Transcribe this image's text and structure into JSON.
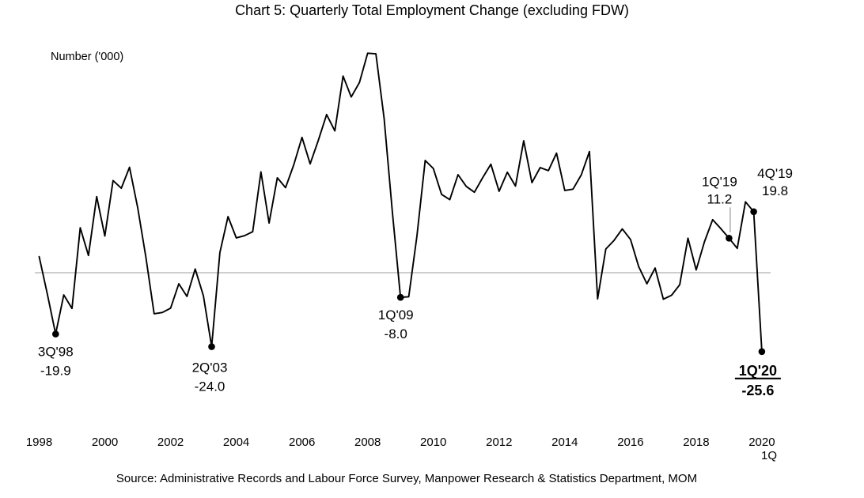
{
  "title": "Chart 5: Quarterly Total Employment Change (excluding FDW)",
  "y_axis_label": "Number ('000)",
  "source": "Source: Administrative Records and Labour Force Survey, Manpower Research & Statistics Department, MOM",
  "x_axis": {
    "tick_labels": [
      "1998",
      "2000",
      "2002",
      "2004",
      "2006",
      "2008",
      "2010",
      "2012",
      "2014",
      "2016",
      "2018",
      "2020"
    ],
    "sub_label": "1Q"
  },
  "colors": {
    "line": "#000000",
    "zero_line": "#bdbdbd",
    "marker": "#000000",
    "leader": "#a6a6a6",
    "background": "#ffffff",
    "text": "#000000"
  },
  "chart_data": {
    "type": "line",
    "title": "Chart 5: Quarterly Total Employment Change (excluding FDW)",
    "xlabel": "",
    "ylabel": "Number ('000)",
    "frequency": "quarterly",
    "x_start": "1Q 1998",
    "x_end": "1Q 2020",
    "ylim": [
      -30,
      78
    ],
    "zero_line": true,
    "grid": false,
    "legend": false,
    "categories": [
      "1Q'98",
      "2Q'98",
      "3Q'98",
      "4Q'98",
      "1Q'99",
      "2Q'99",
      "3Q'99",
      "4Q'99",
      "1Q'00",
      "2Q'00",
      "3Q'00",
      "4Q'00",
      "1Q'01",
      "2Q'01",
      "3Q'01",
      "4Q'01",
      "1Q'02",
      "2Q'02",
      "3Q'02",
      "4Q'02",
      "1Q'03",
      "2Q'03",
      "3Q'03",
      "4Q'03",
      "1Q'04",
      "2Q'04",
      "3Q'04",
      "4Q'04",
      "1Q'05",
      "2Q'05",
      "3Q'05",
      "4Q'05",
      "1Q'06",
      "2Q'06",
      "3Q'06",
      "4Q'06",
      "1Q'07",
      "2Q'07",
      "3Q'07",
      "4Q'07",
      "1Q'08",
      "2Q'08",
      "3Q'08",
      "4Q'08",
      "1Q'09",
      "2Q'09",
      "3Q'09",
      "4Q'09",
      "1Q'10",
      "2Q'10",
      "3Q'10",
      "4Q'10",
      "1Q'11",
      "2Q'11",
      "3Q'11",
      "4Q'11",
      "1Q'12",
      "2Q'12",
      "3Q'12",
      "4Q'12",
      "1Q'13",
      "2Q'13",
      "3Q'13",
      "4Q'13",
      "1Q'14",
      "2Q'14",
      "3Q'14",
      "4Q'14",
      "1Q'15",
      "2Q'15",
      "3Q'15",
      "4Q'15",
      "1Q'16",
      "2Q'16",
      "3Q'16",
      "4Q'16",
      "1Q'17",
      "2Q'17",
      "3Q'17",
      "4Q'17",
      "1Q'18",
      "2Q'18",
      "3Q'18",
      "4Q'18",
      "1Q'19",
      "2Q'19",
      "3Q'19",
      "4Q'19",
      "1Q'20"
    ],
    "values": [
      5.2,
      -7.0,
      -19.9,
      -7.2,
      -11.6,
      14.6,
      5.6,
      24.7,
      11.9,
      29.9,
      27.4,
      34.2,
      21.0,
      5.0,
      -13.3,
      -12.9,
      -11.5,
      -3.6,
      -7.7,
      1.2,
      -7.5,
      -24.0,
      6.5,
      18.2,
      11.3,
      12.0,
      13.3,
      32.7,
      16.1,
      30.8,
      27.6,
      35.0,
      43.9,
      35.3,
      43.0,
      51.3,
      46.0,
      63.8,
      57.0,
      61.7,
      71.2,
      71.0,
      50.0,
      20.0,
      -8.0,
      -7.8,
      12.0,
      36.4,
      33.8,
      25.4,
      23.7,
      31.8,
      28.0,
      26.1,
      30.8,
      35.2,
      26.4,
      32.6,
      28.1,
      42.8,
      29.2,
      34.1,
      33.1,
      38.8,
      26.7,
      27.1,
      31.7,
      39.3,
      -8.5,
      7.7,
      10.5,
      14.2,
      10.8,
      2.0,
      -3.6,
      1.5,
      -8.6,
      -7.3,
      -3.9,
      11.2,
      0.9,
      10.0,
      17.2,
      14.3,
      11.2,
      7.9,
      23.0,
      19.8,
      -25.6
    ],
    "annotations": [
      {
        "quarter": "3Q'98",
        "value_text": "-19.9",
        "value": -19.9,
        "index": 2,
        "position": "below",
        "dx": 0,
        "dy": [
          28,
          52
        ],
        "bold": false,
        "underline": false,
        "leader": false
      },
      {
        "quarter": "2Q'03",
        "value_text": "-24.0",
        "value": -24.0,
        "index": 21,
        "position": "below",
        "dx": -2.5,
        "dy": [
          32,
          56
        ],
        "bold": false,
        "underline": false,
        "leader": false
      },
      {
        "quarter": "1Q'09",
        "value_text": "-8.0",
        "value": -8.0,
        "index": 44,
        "position": "below",
        "dx": -6,
        "dy": [
          28,
          52
        ],
        "bold": false,
        "underline": false,
        "leader": false
      },
      {
        "quarter": "1Q'19",
        "value_text": "11.2",
        "value": 11.2,
        "index": 84,
        "position": "above",
        "dx": -12,
        "dy": [
          -66,
          -44
        ],
        "bold": false,
        "underline": false,
        "leader": true
      },
      {
        "quarter": "4Q'19",
        "value_text": "19.8",
        "value": 19.8,
        "index": 87,
        "position": "above-right",
        "dx": 27,
        "dy": [
          -43,
          -21
        ],
        "bold": false,
        "underline": false,
        "leader": false
      },
      {
        "quarter": "1Q'20",
        "value_text": "-25.6",
        "value": -25.6,
        "index": 88,
        "position": "below",
        "dx": -5,
        "dy": [
          30,
          55
        ],
        "bold": true,
        "underline": true,
        "leader": false
      }
    ]
  }
}
